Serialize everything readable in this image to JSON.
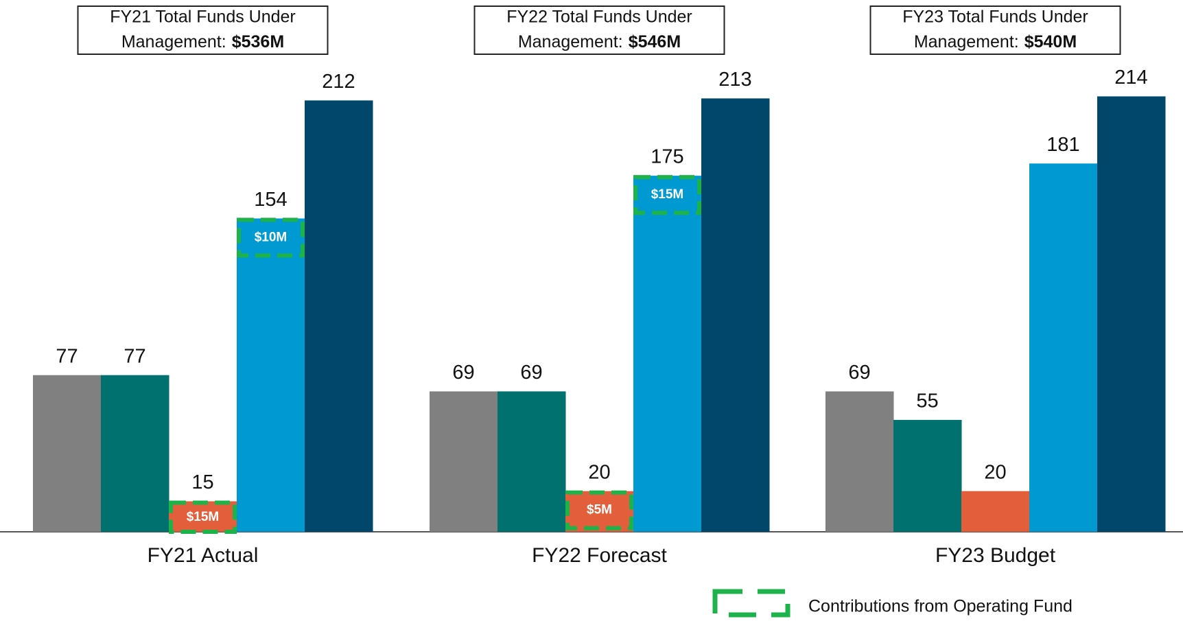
{
  "chart_data": {
    "type": "bar",
    "categories": [
      "FY21 Actual",
      "FY22 Forecast",
      "FY23 Budget"
    ],
    "series": [
      {
        "color": "#808080",
        "values": [
          77,
          69,
          69
        ]
      },
      {
        "color": "#00716f",
        "values": [
          77,
          69,
          55
        ]
      },
      {
        "color": "#e35f3b",
        "values": [
          15,
          20,
          20
        ],
        "contribution_labels": [
          "$15M",
          "$5M",
          null
        ]
      },
      {
        "color": "#0099d2",
        "values": [
          154,
          175,
          181
        ],
        "contribution_labels": [
          "$10M",
          "$15M",
          null
        ]
      },
      {
        "color": "#00476b",
        "values": [
          212,
          213,
          214
        ]
      }
    ],
    "ylim": [
      0,
      230
    ],
    "annotations": [
      {
        "line1": "FY21 Total Funds Under",
        "line2": "Management:",
        "amount": "$536M"
      },
      {
        "line1": "FY22 Total Funds Under",
        "line2": "Management:",
        "amount": "$546M"
      },
      {
        "line1": "FY23 Total Funds Under",
        "line2": "Management:",
        "amount": "$540M"
      }
    ],
    "contribution_color": "#1db34a",
    "legend": "Contributions from Operating Fund"
  }
}
